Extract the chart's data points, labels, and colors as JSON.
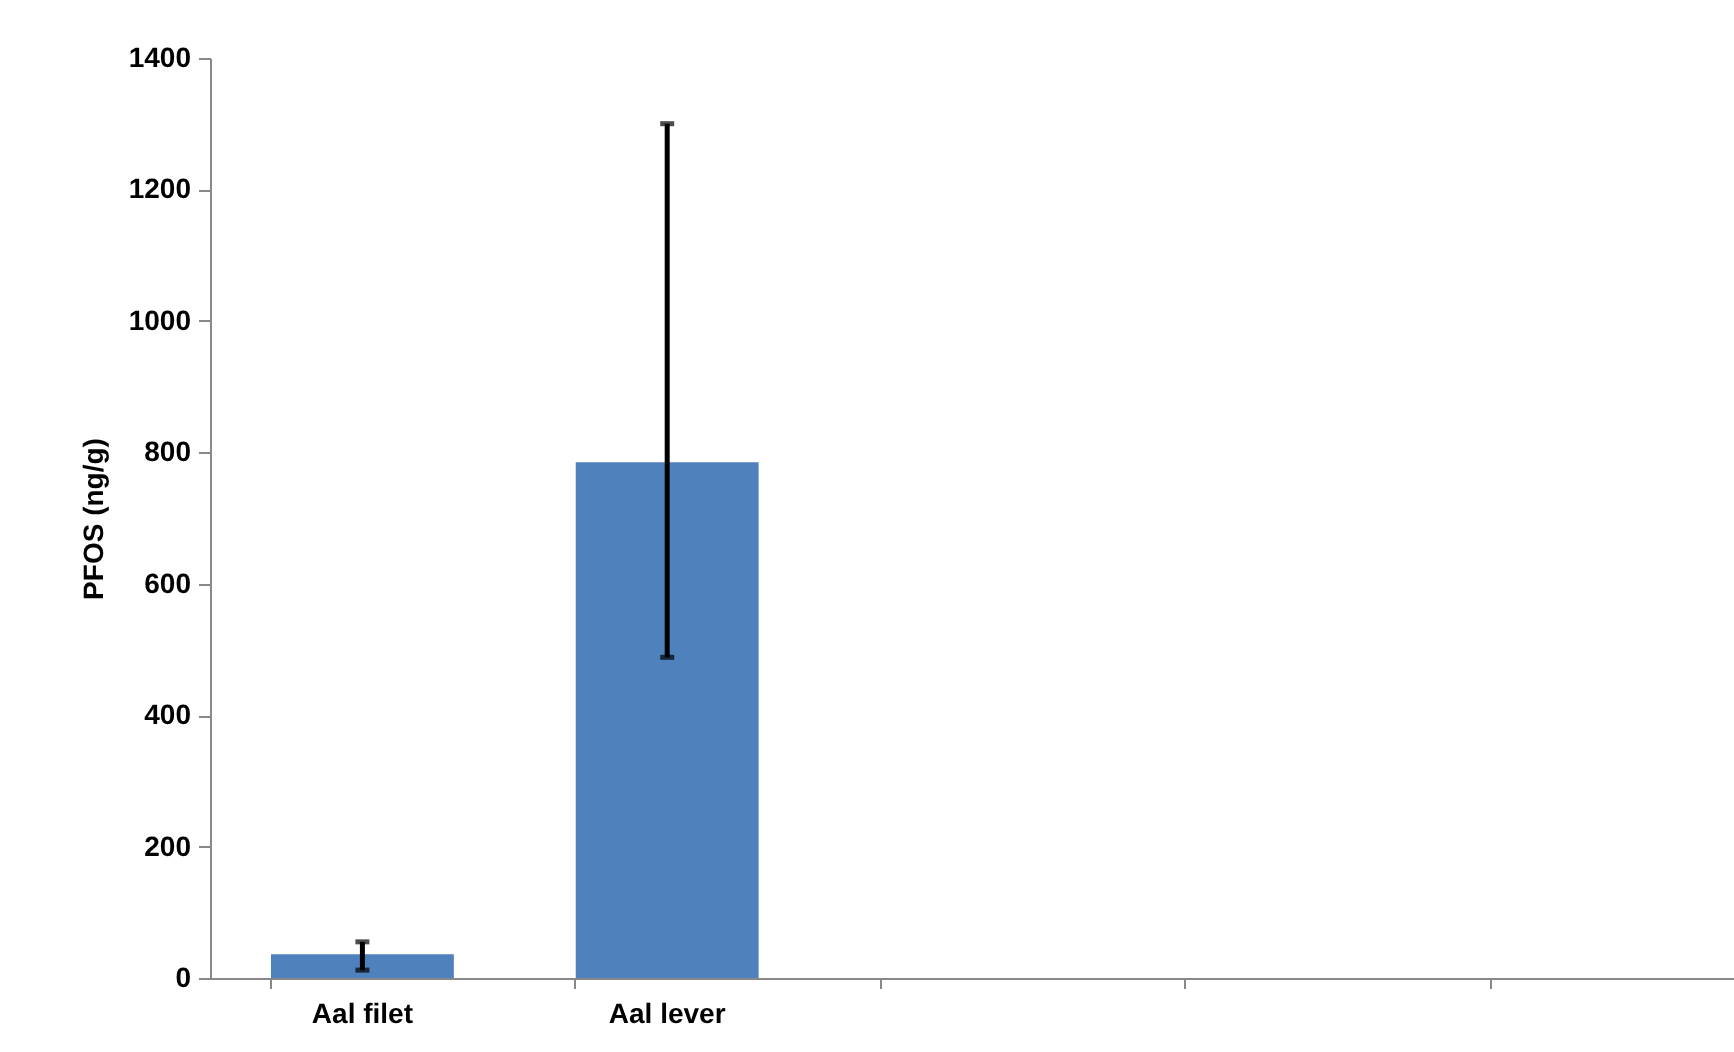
{
  "chart_data": {
    "type": "bar",
    "ylabel": "PFOS (ng/g)",
    "categories": [
      "Aal filet",
      "Aal lever",
      null,
      null,
      null
    ],
    "values": [
      36,
      785,
      null,
      null,
      null
    ],
    "errors": [
      [
        12,
        55
      ],
      [
        488,
        1300
      ],
      null,
      null,
      null
    ],
    "color": "#4f81bd",
    "ylim": [
      0,
      1400
    ],
    "yticks": [
      0,
      200,
      400,
      600,
      800,
      1000,
      1200,
      1400
    ],
    "grid": false
  }
}
